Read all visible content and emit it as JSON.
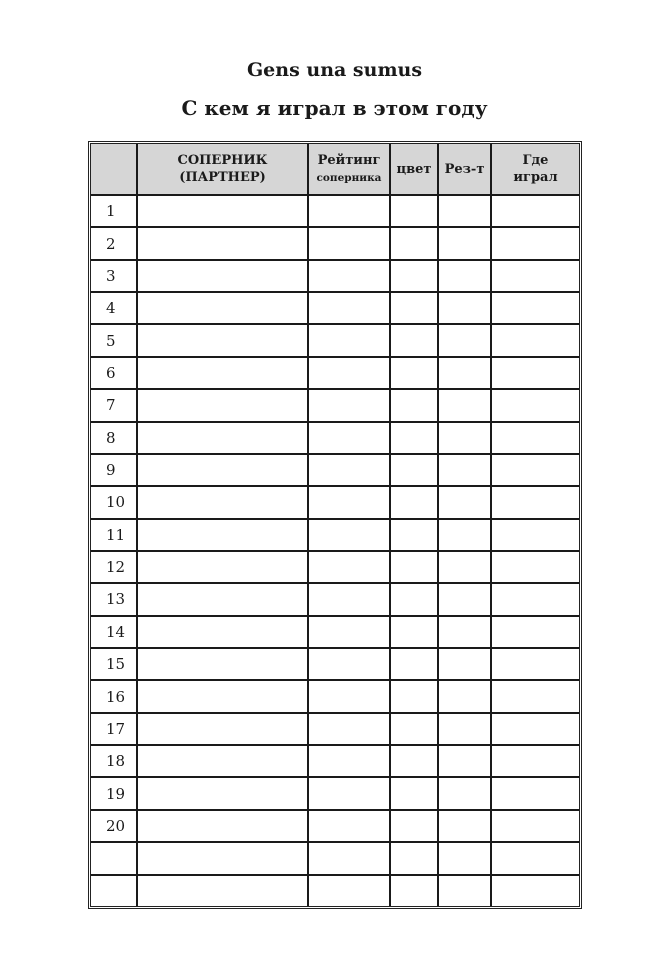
{
  "title": "Gens una sumus",
  "subtitle": "С кем я играл в этом году",
  "table": {
    "headers": {
      "num": "",
      "opponent_line1": "СОПЕРНИК",
      "opponent_line2": "(ПАРТНЕР)",
      "rating_line1": "Рейтинг",
      "rating_line2": "соперника",
      "color": "цвет",
      "result": "Рез-т",
      "place_line1": "Где",
      "place_line2": "играл"
    },
    "header_background": "#d6d6d6",
    "row_numbers": [
      "1",
      "2",
      "3",
      "4",
      "5",
      "6",
      "7",
      "8",
      "9",
      "10",
      "11",
      "12",
      "13",
      "14",
      "15",
      "16",
      "17",
      "18",
      "19",
      "20",
      "",
      ""
    ]
  }
}
